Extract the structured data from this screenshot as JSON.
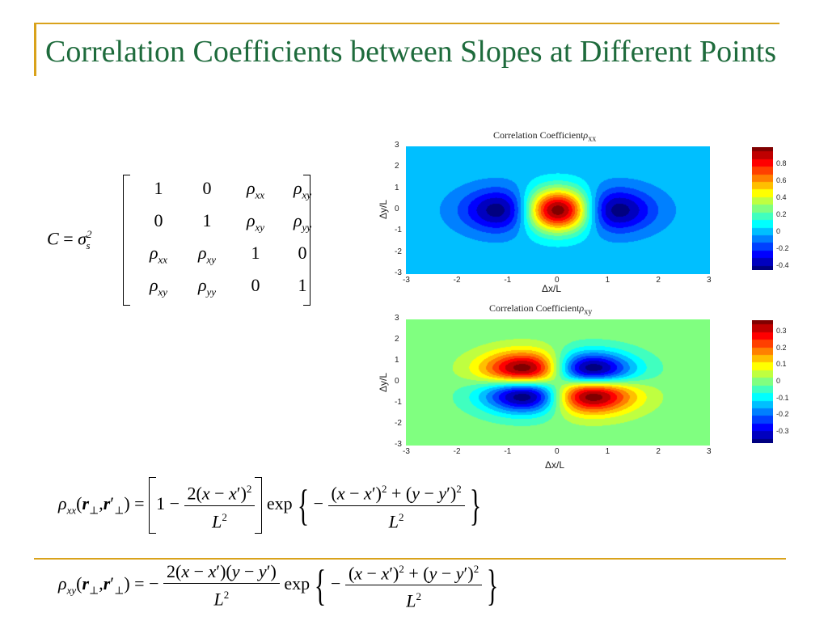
{
  "slide": {
    "title": "Correlation Coefficients between Slopes at Different Points",
    "accent_color": "#d9a21b",
    "title_color": "#1e6b3c"
  },
  "matrix": {
    "lhs_var": "C",
    "sigma": "σ",
    "sigma_sub": "s",
    "sigma_sup": "2",
    "rows": [
      [
        "1",
        "0",
        "ρxx",
        "ρxy"
      ],
      [
        "0",
        "1",
        "ρxy",
        "ρyy"
      ],
      [
        "ρxx",
        "ρxy",
        "1",
        "0"
      ],
      [
        "ρxy",
        "ρyy",
        "0",
        "1"
      ]
    ]
  },
  "chart_data": [
    {
      "type": "heatmap",
      "title": "Correlation Coefficient",
      "title_symbol": "ρ",
      "title_sub": "xx",
      "xlabel": "Δx/L",
      "ylabel": "Δy/L",
      "xlim": [
        -3,
        3
      ],
      "ylim": [
        -3,
        3
      ],
      "x_ticks": [
        "-3",
        "-2",
        "-1",
        "0",
        "1",
        "2",
        "3"
      ],
      "y_ticks": [
        "3",
        "2",
        "1",
        "0",
        "-1",
        "-2",
        "-3"
      ],
      "colorbar_ticks": [
        "0.8",
        "0.6",
        "0.4",
        "0.2",
        "0",
        "-0.2",
        "-0.4"
      ],
      "colorbar_range": [
        -0.45,
        1.0
      ],
      "function": "(1 - 2x^2) * exp(-(x^2 + y^2))"
    },
    {
      "type": "heatmap",
      "title": "Correlation Coefficient",
      "title_symbol": "ρ",
      "title_sub": "xy",
      "xlabel": "Δx/L",
      "ylabel": "Δy/L",
      "xlim": [
        -3,
        3
      ],
      "ylim": [
        -3,
        3
      ],
      "x_ticks": [
        "-3",
        "-2",
        "-1",
        "0",
        "1",
        "2",
        "3"
      ],
      "y_ticks": [
        "3",
        "2",
        "1",
        "0",
        "-1",
        "-2",
        "-3"
      ],
      "colorbar_ticks": [
        "0.3",
        "0.2",
        "0.1",
        "0",
        "-0.1",
        "-0.2",
        "-0.3"
      ],
      "colorbar_range": [
        -0.37,
        0.37
      ],
      "function": "-2xy * exp(-(x^2 + y^2))"
    }
  ]
}
